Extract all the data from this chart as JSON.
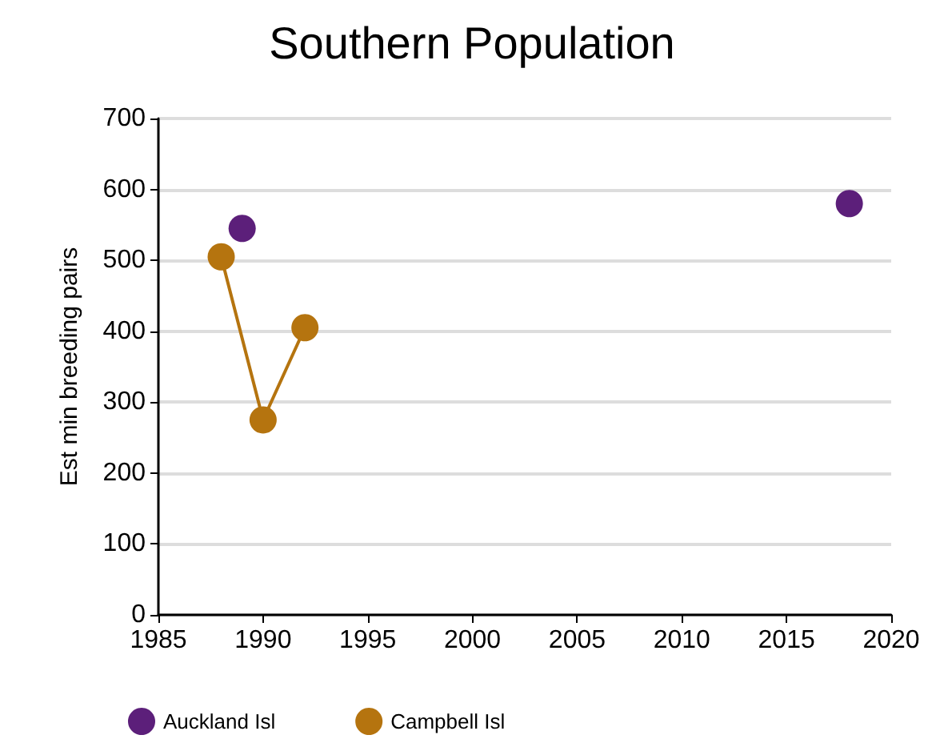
{
  "chart_data": {
    "type": "line",
    "title": "Southern Population",
    "ylabel": "Est min breeding pairs",
    "series": [
      {
        "name": "Auckland Isl",
        "type": "scatter",
        "color": "#5c1f7a",
        "x": [
          1989,
          2018
        ],
        "values": [
          545,
          580
        ]
      },
      {
        "name": "Campbell Isl",
        "color": "#b5740f",
        "x": [
          1988,
          1990,
          1992
        ],
        "values": [
          505,
          275,
          405
        ]
      }
    ],
    "xlim": [
      1985,
      2020
    ],
    "xticks": [
      1985,
      1990,
      1995,
      2000,
      2005,
      2010,
      2015,
      2020
    ],
    "ylim": [
      0,
      700
    ],
    "yticks": [
      0,
      100,
      200,
      300,
      400,
      500,
      600,
      700
    ],
    "grid": "y",
    "legend": "bottom left",
    "marker": "circle"
  }
}
